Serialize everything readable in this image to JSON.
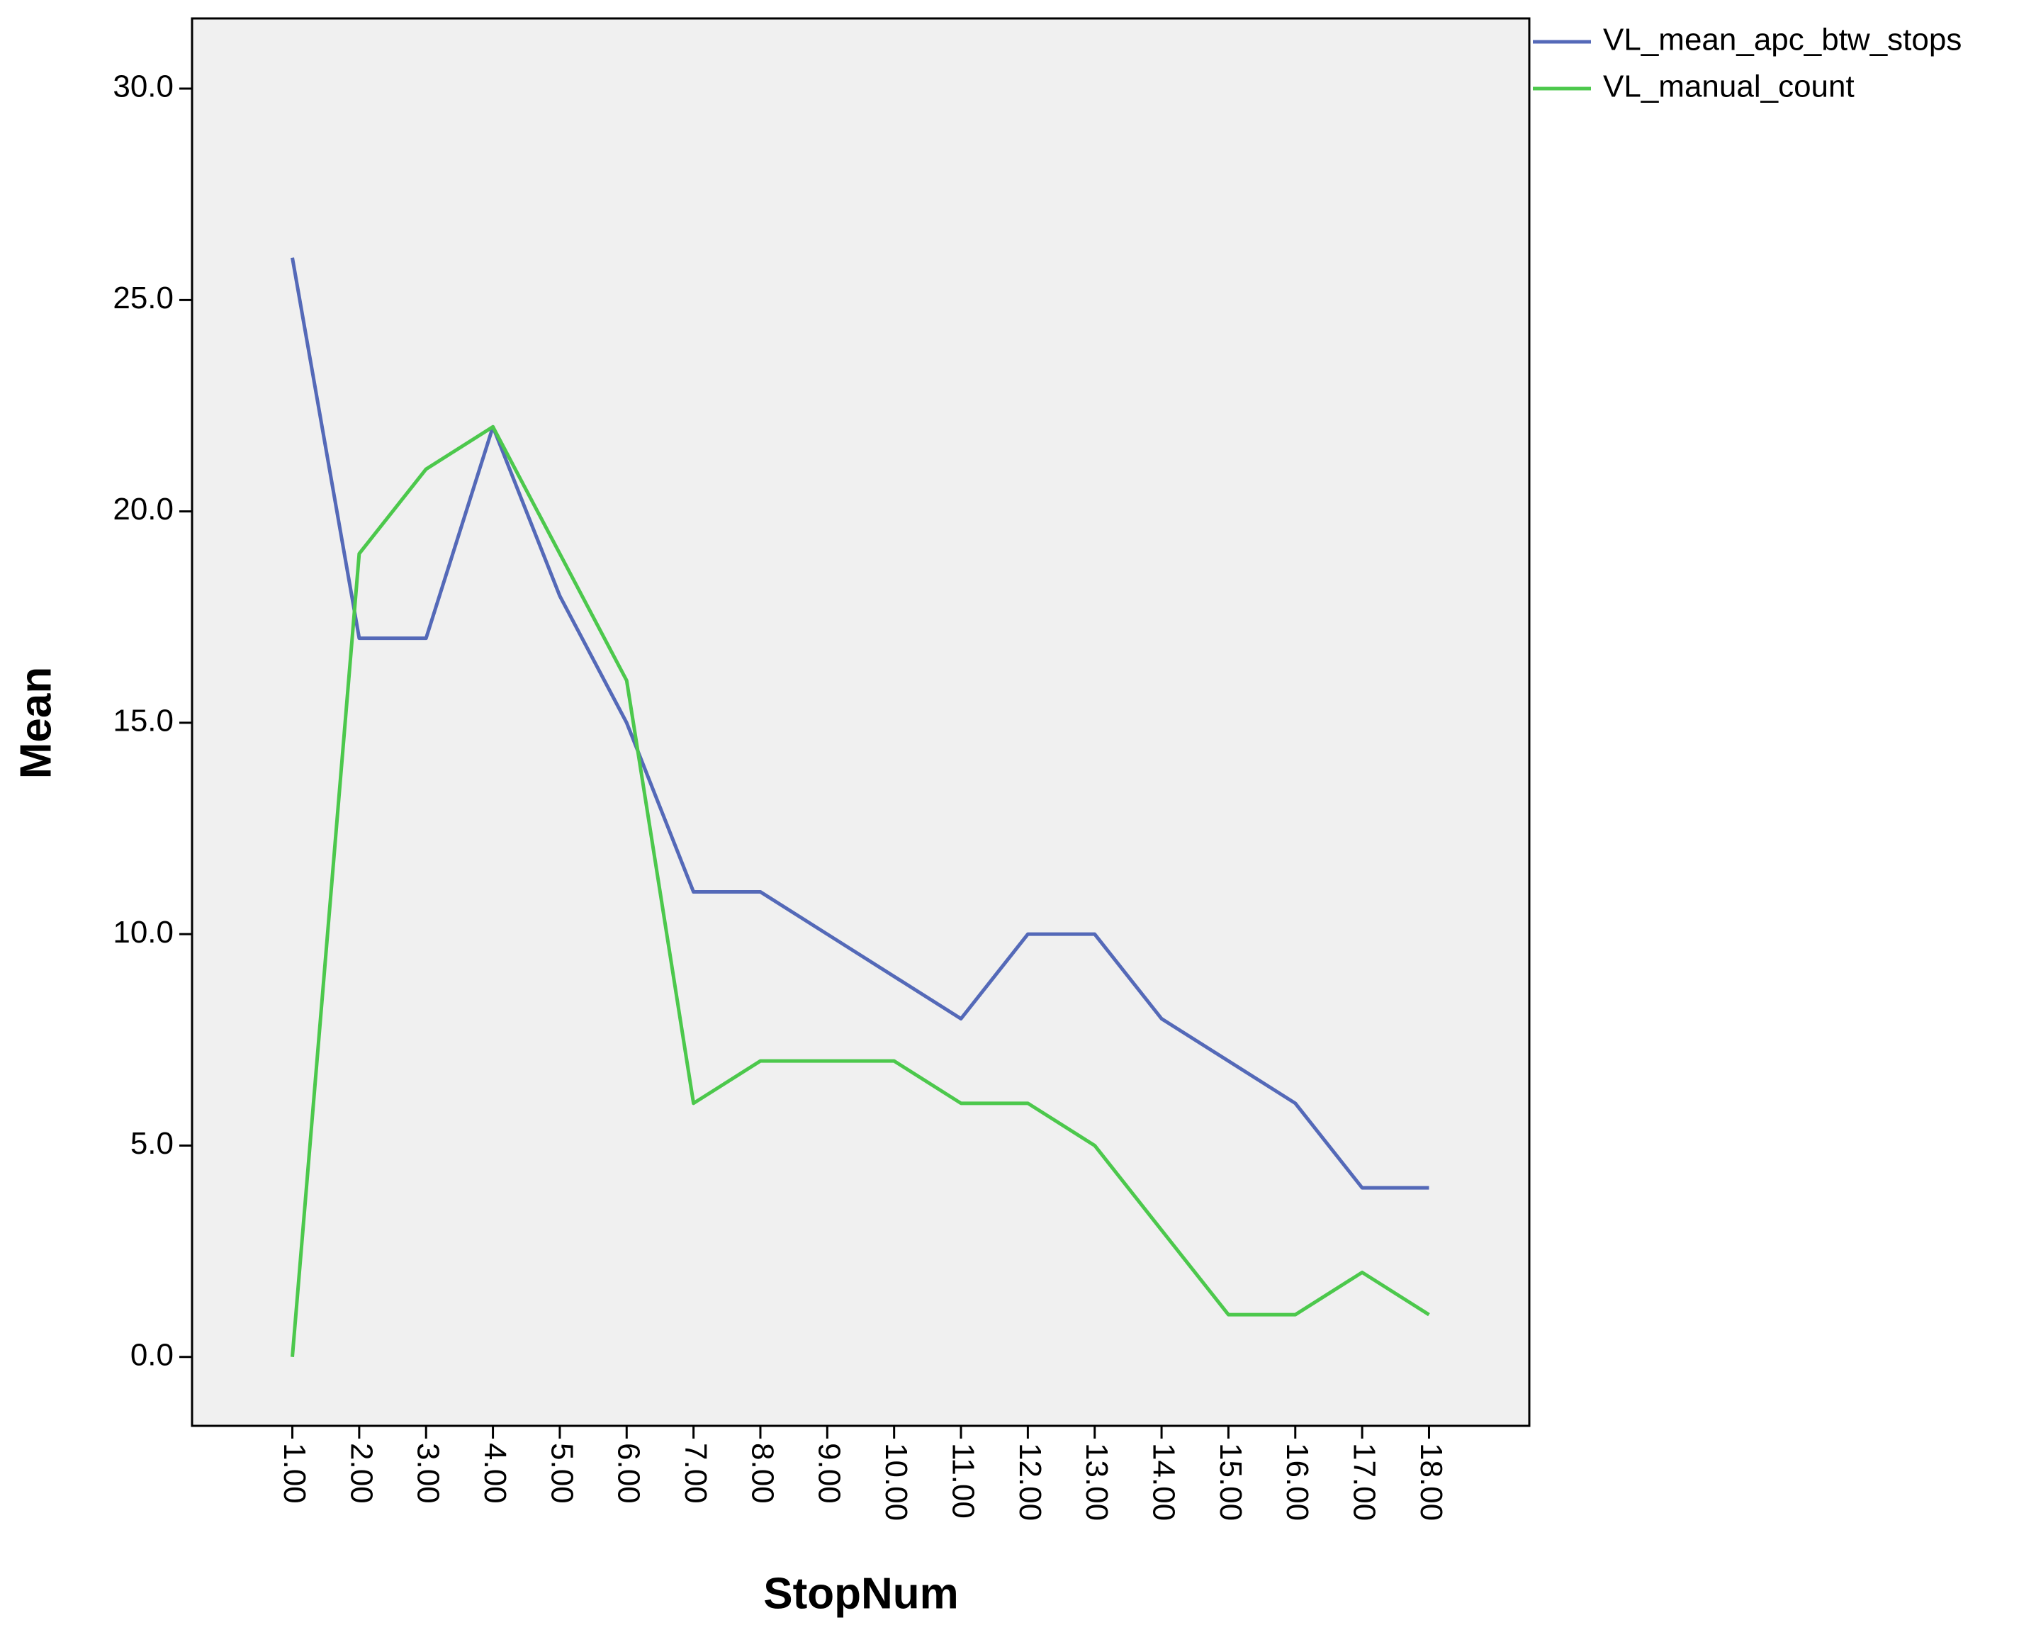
{
  "chart_data": {
    "type": "line",
    "xlabel": "StopNum",
    "ylabel": "Mean",
    "categories": [
      "1.00",
      "2.00",
      "3.00",
      "4.00",
      "5.00",
      "6.00",
      "7.00",
      "8.00",
      "9.00",
      "10.00",
      "11.00",
      "12.00",
      "13.00",
      "14.00",
      "15.00",
      "16.00",
      "17.00",
      "18.00"
    ],
    "series": [
      {
        "name": "VL_mean_apc_btw_stops",
        "color": "#5469b8",
        "values": [
          26,
          17,
          17,
          22,
          18,
          15,
          11,
          11,
          10,
          9,
          8,
          10,
          10,
          8,
          7,
          6,
          4,
          4
        ]
      },
      {
        "name": "VL_manual_count",
        "color": "#4cc84c",
        "values": [
          0,
          19,
          21,
          22,
          19,
          16,
          6,
          7,
          7,
          7,
          6,
          6,
          5,
          3,
          1,
          1,
          2,
          1
        ]
      }
    ],
    "ylim": [
      -1.63,
      31.66
    ],
    "yticks": [
      {
        "value": 0,
        "label": "0.0"
      },
      {
        "value": 5,
        "label": "5.0"
      },
      {
        "value": 10,
        "label": "10.0"
      },
      {
        "value": 15,
        "label": "15.0"
      },
      {
        "value": 20,
        "label": "20.0"
      },
      {
        "value": 25,
        "label": "25.0"
      },
      {
        "value": 30,
        "label": "30.0"
      }
    ],
    "legend": "right",
    "grid": false
  }
}
